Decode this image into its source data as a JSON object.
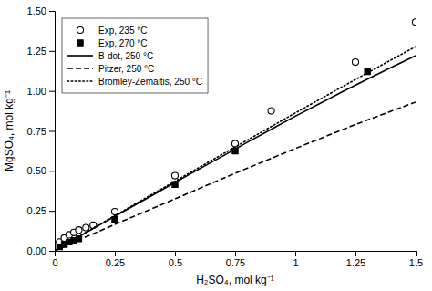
{
  "chart_data": {
    "type": "line",
    "xlabel": "H₂SO₄, mol kg⁻¹",
    "ylabel": "MgSO₄, mol kg⁻¹",
    "xlim": [
      0,
      1.5
    ],
    "ylim": [
      0,
      1.5
    ],
    "xticks": [
      0,
      0.25,
      0.5,
      0.75,
      1,
      1.25,
      1.5
    ],
    "yticks": [
      {
        "value": 0,
        "label": "0.00"
      },
      0.25,
      {
        "value": 0.5,
        "label": "0.50"
      },
      0.75,
      {
        "value": 1,
        "label": "1.00"
      },
      1.25,
      {
        "value": 1.5,
        "label": "1.50"
      }
    ],
    "grid": false,
    "legend": "upper left",
    "series": [
      {
        "name": "Exp, 235 °C",
        "type": "scatter",
        "marker": "open-circle",
        "color": "#000000",
        "x": [
          0.02,
          0.04,
          0.06,
          0.08,
          0.1,
          0.13,
          0.16,
          0.25,
          0.5,
          0.75,
          0.9,
          1.25,
          1.5
        ],
        "values": [
          0.055,
          0.08,
          0.1,
          0.115,
          0.13,
          0.145,
          0.16,
          0.245,
          0.47,
          0.67,
          0.875,
          1.18,
          1.43
        ]
      },
      {
        "name": "Exp, 270 °C",
        "type": "scatter",
        "marker": "square",
        "color": "#000000",
        "x": [
          0.02,
          0.04,
          0.06,
          0.08,
          0.1,
          0.25,
          0.5,
          0.75,
          1.3
        ],
        "values": [
          0.025,
          0.04,
          0.055,
          0.065,
          0.075,
          0.195,
          0.415,
          0.625,
          1.12
        ]
      },
      {
        "name": "B-dot, 250 °C",
        "type": "line",
        "line_style": "solid",
        "color": "#000000",
        "x": [
          0.0,
          0.05,
          0.1,
          0.2,
          0.3,
          0.4,
          0.5,
          0.6,
          0.7,
          0.8,
          0.9,
          1.0,
          1.1,
          1.2,
          1.3,
          1.4,
          1.5
        ],
        "values": [
          0.0,
          0.045,
          0.088,
          0.173,
          0.258,
          0.342,
          0.427,
          0.511,
          0.594,
          0.678,
          0.76,
          0.842,
          0.92,
          0.998,
          1.074,
          1.148,
          1.22
        ]
      },
      {
        "name": "Pitzer, 250 °C",
        "type": "line",
        "line_style": "dashed",
        "color": "#000000",
        "x": [
          0.0,
          0.1,
          0.25,
          0.5,
          0.75,
          1.0,
          1.25,
          1.5
        ],
        "values": [
          0.0,
          0.068,
          0.165,
          0.325,
          0.485,
          0.64,
          0.79,
          0.93
        ]
      },
      {
        "name": "Bromley-Zemaitis, 250 °C",
        "type": "line",
        "line_style": "dotted",
        "color": "#000000",
        "x": [
          0.0,
          0.05,
          0.1,
          0.2,
          0.3,
          0.4,
          0.5,
          0.6,
          0.7,
          0.8,
          0.9,
          1.0,
          1.1,
          1.2,
          1.3,
          1.4,
          1.5
        ],
        "values": [
          0.0,
          0.046,
          0.09,
          0.177,
          0.263,
          0.349,
          0.435,
          0.521,
          0.607,
          0.692,
          0.777,
          0.862,
          0.946,
          1.03,
          1.113,
          1.195,
          1.277
        ]
      }
    ]
  }
}
